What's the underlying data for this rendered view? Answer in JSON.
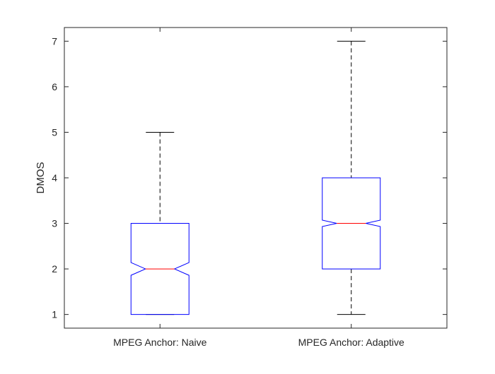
{
  "chart_data": {
    "type": "boxplot",
    "notched": true,
    "categories": [
      "MPEG Anchor: Naive",
      "MPEG Anchor: Adaptive"
    ],
    "boxes": [
      {
        "category": "MPEG Anchor: Naive",
        "whisker_low": 1,
        "q1": 1,
        "median": 2,
        "q3": 3,
        "whisker_high": 5,
        "notch_low": 1.86,
        "notch_high": 2.14
      },
      {
        "category": "MPEG Anchor: Adaptive",
        "whisker_low": 1,
        "q1": 2,
        "median": 3,
        "q3": 4,
        "whisker_high": 7,
        "notch_low": 2.93,
        "notch_high": 3.07
      }
    ],
    "ylabel": "DMOS",
    "xlabel": "",
    "title": "",
    "ylim": [
      0.7,
      7.3
    ],
    "yticks": [
      1,
      2,
      3,
      4,
      5,
      6,
      7
    ],
    "grid": false,
    "colors": {
      "box": "#0000ff",
      "median": "#ff0000",
      "whisker": "#000000",
      "axes": "#262626"
    }
  }
}
